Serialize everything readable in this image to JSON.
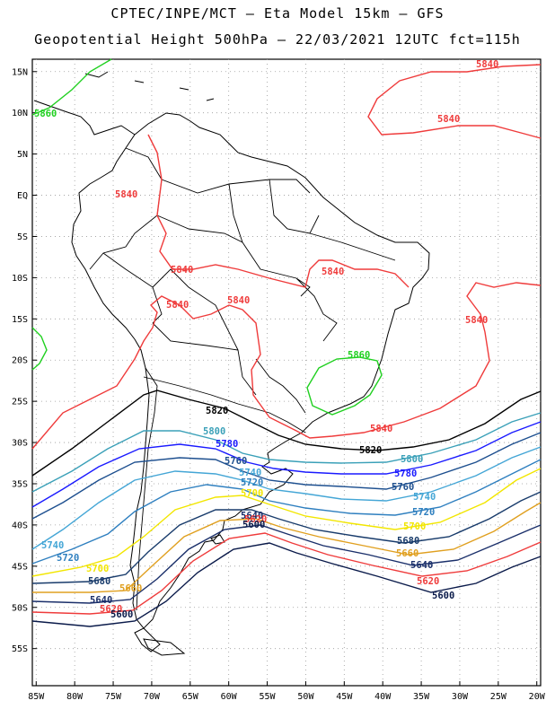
{
  "header": {
    "line1": "CPTEC/INPE/MCT –  Eta Model 15km – GFS",
    "line2": "Geopotential Height 500hPa – 22/03/2021 12UTC fct=115h"
  },
  "axes": {
    "lat_labels": [
      "15N",
      "10N",
      "5N",
      "EQ",
      "5S",
      "10S",
      "15S",
      "20S",
      "25S",
      "30S",
      "35S",
      "40S",
      "45S",
      "50S",
      "55S"
    ],
    "lat_values": [
      15,
      10,
      5,
      0,
      -5,
      -10,
      -15,
      -20,
      -25,
      -30,
      -35,
      -40,
      -45,
      -50,
      -55
    ],
    "lon_labels": [
      "85W",
      "80W",
      "75W",
      "70W",
      "65W",
      "60W",
      "55W",
      "50W",
      "45W",
      "40W",
      "35W",
      "30W",
      "25W",
      "20W"
    ],
    "lon_values": [
      -85,
      -80,
      -75,
      -70,
      -65,
      -60,
      -55,
      -50,
      -45,
      -40,
      -35,
      -30,
      -25,
      -20
    ],
    "lon_range": [
      -85.5,
      -19.5
    ],
    "lat_range": [
      -59.5,
      16.5
    ],
    "grid": "dotted"
  },
  "contours": [
    {
      "level": "5840",
      "color": "#ef3b3b",
      "labels": [
        "5840",
        "5840",
        "5840",
        "5840",
        "5840",
        "5840",
        "5840",
        "5840",
        "5840"
      ]
    },
    {
      "level": "5860",
      "color": "#20d020",
      "labels": [
        "5860",
        "5860"
      ]
    },
    {
      "level": "5820",
      "color": "#000000",
      "labels": [
        "5820",
        "5820"
      ]
    },
    {
      "level": "5800",
      "color": "#3aa0b8",
      "labels": [
        "5800",
        "5800"
      ]
    },
    {
      "level": "5780",
      "color": "#1a1aff",
      "labels": [
        "5780",
        "5780"
      ]
    },
    {
      "level": "5760",
      "color": "#1d4f8f",
      "labels": [
        "5760",
        "5760"
      ]
    },
    {
      "level": "5740",
      "color": "#44a6d6",
      "labels": [
        "5740",
        "5740",
        "5740"
      ]
    },
    {
      "level": "5720",
      "color": "#2e7fbf",
      "labels": [
        "5720",
        "5720",
        "5720"
      ]
    },
    {
      "level": "5700",
      "color": "#f2e600",
      "labels": [
        "5700",
        "5700",
        "5700"
      ]
    },
    {
      "level": "5680",
      "color": "#183b6b",
      "labels": [
        "5680",
        "5680"
      ]
    },
    {
      "level": "5660",
      "color": "#e0a020",
      "labels": [
        "5660",
        "5660"
      ]
    },
    {
      "level": "5640",
      "color": "#1a2f6a",
      "labels": [
        "5640",
        "5640",
        "5640"
      ]
    },
    {
      "level": "5620",
      "color": "#ef3b3b",
      "labels": [
        "5620",
        "5620",
        "5620"
      ]
    },
    {
      "level": "5600",
      "color": "#0a1a4a",
      "labels": [
        "5600",
        "5600",
        "5600"
      ]
    }
  ]
}
